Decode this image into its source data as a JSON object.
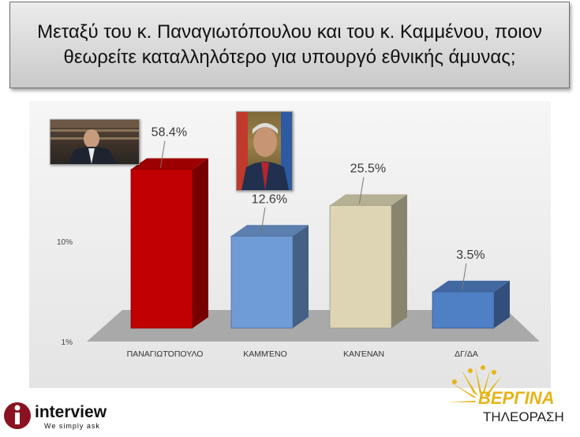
{
  "title": "Μεταξύ του κ. Παναγιωτόπουλου και του κ. Καμμένου, ποιον θεωρείτε καταλληλότερο για υπουργό εθνικής άμυνας;",
  "chart_data": {
    "type": "bar",
    "categories": [
      "ΠΑΝΑΓΙΩΤΌΠΟΥΛΟ",
      "ΚΑΜΜΈΝΟ",
      "ΚΑΝΈΝΑΝ",
      "ΔΓ/ΔΑ"
    ],
    "values": [
      58.4,
      12.6,
      25.5,
      3.5
    ],
    "data_labels": [
      "58.4%",
      "12.6%",
      "25.5%",
      "3.5%"
    ],
    "y_scale": "log",
    "ylim": [
      1,
      100
    ],
    "y_ticks": [
      1,
      10
    ],
    "y_tick_labels": [
      "1%",
      "10%"
    ],
    "bar_colors": [
      "#c00000",
      "#6f9bd6",
      "#ddd5b4",
      "#4f7fc4"
    ],
    "grid": false,
    "legend": "none"
  },
  "logos": {
    "interview_name": "interview",
    "interview_tagline": "We simply ask",
    "vergina_name": "ΒΕΡΓΙΝΑ",
    "vergina_subtitle": "ΤΗΛΕΟΡΑΣΗ"
  }
}
